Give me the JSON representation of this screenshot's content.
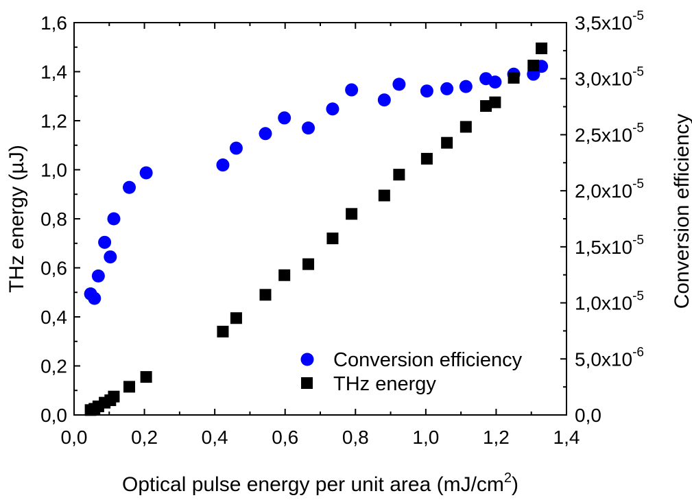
{
  "chart_data": {
    "type": "scatter",
    "xlabel": "Optical pulse energy per unit area (mJ/cm",
    "xlabel_sup": "2",
    "xlabel_end": ")",
    "ylabel_left": "THz energy (µJ)",
    "ylabel_right": "Conversion efficiency",
    "xlim": [
      0.0,
      1.4
    ],
    "ylim_left": [
      0.0,
      1.6
    ],
    "ylim_right": [
      0.0,
      3.5e-05
    ],
    "x_ticks": [
      {
        "value": 0.0,
        "label": "0,0"
      },
      {
        "value": 0.2,
        "label": "0,2"
      },
      {
        "value": 0.4,
        "label": "0,4"
      },
      {
        "value": 0.6,
        "label": "0,6"
      },
      {
        "value": 0.8,
        "label": "0,8"
      },
      {
        "value": 1.0,
        "label": "1,0"
      },
      {
        "value": 1.2,
        "label": "1,2"
      },
      {
        "value": 1.4,
        "label": "1,4"
      }
    ],
    "y_left_ticks": [
      {
        "value": 0.0,
        "label": "0,0"
      },
      {
        "value": 0.2,
        "label": "0,2"
      },
      {
        "value": 0.4,
        "label": "0,4"
      },
      {
        "value": 0.6,
        "label": "0,6"
      },
      {
        "value": 0.8,
        "label": "0,8"
      },
      {
        "value": 1.0,
        "label": "1,0"
      },
      {
        "value": 1.2,
        "label": "1,2"
      },
      {
        "value": 1.4,
        "label": "1,4"
      },
      {
        "value": 1.6,
        "label": "1,6"
      }
    ],
    "y_right_ticks": [
      {
        "value": 0.0,
        "mantissa": "0,0",
        "exponent": ""
      },
      {
        "value": 5e-06,
        "mantissa": "5,0x10",
        "exponent": "-6"
      },
      {
        "value": 1e-05,
        "mantissa": "1,0x10",
        "exponent": "-5"
      },
      {
        "value": 1.5e-05,
        "mantissa": "1,5x10",
        "exponent": "-5"
      },
      {
        "value": 2e-05,
        "mantissa": "2,0x10",
        "exponent": "-5"
      },
      {
        "value": 2.5e-05,
        "mantissa": "2,5x10",
        "exponent": "-5"
      },
      {
        "value": 3e-05,
        "mantissa": "3,0x10",
        "exponent": "-5"
      },
      {
        "value": 3.5e-05,
        "mantissa": "3,5x10",
        "exponent": "-5"
      }
    ],
    "legend_position": "bottom-right",
    "series": [
      {
        "name": "Conversion efficiency",
        "axis": "right",
        "marker": "circle",
        "color": "#0000ff",
        "points": [
          {
            "x": 0.047,
            "y": 1.08e-05
          },
          {
            "x": 0.058,
            "y": 1.04e-05
          },
          {
            "x": 0.069,
            "y": 1.24e-05
          },
          {
            "x": 0.087,
            "y": 1.54e-05
          },
          {
            "x": 0.103,
            "y": 1.41e-05
          },
          {
            "x": 0.113,
            "y": 1.75e-05
          },
          {
            "x": 0.157,
            "y": 2.03e-05
          },
          {
            "x": 0.205,
            "y": 2.16e-05
          },
          {
            "x": 0.423,
            "y": 2.23e-05
          },
          {
            "x": 0.461,
            "y": 2.38e-05
          },
          {
            "x": 0.544,
            "y": 2.51e-05
          },
          {
            "x": 0.598,
            "y": 2.65e-05
          },
          {
            "x": 0.666,
            "y": 2.56e-05
          },
          {
            "x": 0.735,
            "y": 2.73e-05
          },
          {
            "x": 0.789,
            "y": 2.9e-05
          },
          {
            "x": 0.882,
            "y": 2.81e-05
          },
          {
            "x": 0.924,
            "y": 2.95e-05
          },
          {
            "x": 1.003,
            "y": 2.89e-05
          },
          {
            "x": 1.06,
            "y": 2.91e-05
          },
          {
            "x": 1.114,
            "y": 2.93e-05
          },
          {
            "x": 1.171,
            "y": 3e-05
          },
          {
            "x": 1.197,
            "y": 2.97e-05
          },
          {
            "x": 1.25,
            "y": 3.04e-05
          },
          {
            "x": 1.306,
            "y": 3.04e-05
          },
          {
            "x": 1.329,
            "y": 3.11e-05
          }
        ]
      },
      {
        "name": "THz energy",
        "axis": "left",
        "marker": "square",
        "color": "#000000",
        "points": [
          {
            "x": 0.047,
            "y": 0.02
          },
          {
            "x": 0.058,
            "y": 0.025
          },
          {
            "x": 0.069,
            "y": 0.035
          },
          {
            "x": 0.087,
            "y": 0.05
          },
          {
            "x": 0.103,
            "y": 0.06
          },
          {
            "x": 0.113,
            "y": 0.075
          },
          {
            "x": 0.157,
            "y": 0.115
          },
          {
            "x": 0.205,
            "y": 0.155
          },
          {
            "x": 0.423,
            "y": 0.34
          },
          {
            "x": 0.461,
            "y": 0.395
          },
          {
            "x": 0.544,
            "y": 0.49
          },
          {
            "x": 0.598,
            "y": 0.57
          },
          {
            "x": 0.666,
            "y": 0.615
          },
          {
            "x": 0.735,
            "y": 0.72
          },
          {
            "x": 0.789,
            "y": 0.82
          },
          {
            "x": 0.882,
            "y": 0.895
          },
          {
            "x": 0.924,
            "y": 0.98
          },
          {
            "x": 1.003,
            "y": 1.045
          },
          {
            "x": 1.06,
            "y": 1.11
          },
          {
            "x": 1.114,
            "y": 1.175
          },
          {
            "x": 1.171,
            "y": 1.26
          },
          {
            "x": 1.197,
            "y": 1.275
          },
          {
            "x": 1.25,
            "y": 1.375
          },
          {
            "x": 1.306,
            "y": 1.425
          },
          {
            "x": 1.329,
            "y": 1.495
          }
        ]
      }
    ]
  }
}
